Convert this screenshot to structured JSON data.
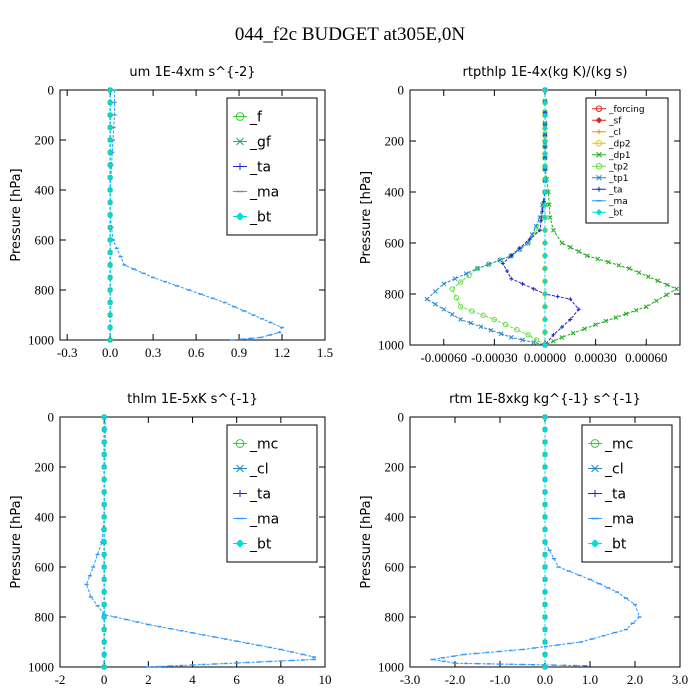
{
  "figure_title": "044_f2c  BUDGET at305E,0N",
  "chart_data": [
    {
      "type": "line",
      "title": "um  1E-4xm s^{-2}",
      "ylabel": "Pressure [hPa]",
      "xlim": [
        -0.35,
        1.5
      ],
      "ylim": [
        1000,
        0
      ],
      "xticks": [
        "-0.3",
        "0.0",
        "0.3",
        "0.6",
        "0.9",
        "1.2",
        "1.5"
      ],
      "xtick_values": [
        -0.3,
        0.0,
        0.3,
        0.6,
        0.9,
        1.2,
        1.5
      ],
      "yticks": [
        "0",
        "200",
        "400",
        "600",
        "800",
        "1000"
      ],
      "legend_position": "top-right",
      "series": [
        {
          "name": "_f",
          "color": "#33cc33",
          "marker": "circle",
          "x": [
            0,
            0,
            0,
            0,
            0,
            0,
            0,
            0,
            0,
            0,
            0
          ],
          "y": [
            0,
            100,
            200,
            300,
            400,
            500,
            600,
            700,
            800,
            900,
            1000
          ]
        },
        {
          "name": "_gf",
          "color": "#22aa77",
          "marker": "x",
          "x": [
            0,
            0,
            0,
            0,
            0,
            0,
            0,
            0,
            0,
            0,
            0
          ],
          "y": [
            0,
            100,
            200,
            300,
            400,
            500,
            600,
            700,
            800,
            900,
            1000
          ]
        },
        {
          "name": "_ta",
          "color": "#2222cc",
          "marker": "plus",
          "x": [
            0,
            0,
            0,
            0,
            0,
            0,
            0,
            0,
            0,
            0,
            0
          ],
          "y": [
            0,
            100,
            200,
            300,
            400,
            500,
            600,
            700,
            800,
            900,
            1000
          ]
        },
        {
          "name": "_ma",
          "color": "#3399ff",
          "marker": "dash",
          "x": [
            0.03,
            0.03,
            0.02,
            0.01,
            0,
            0,
            0.02,
            0.1,
            0.3,
            0.55,
            0.8,
            1.0,
            1.12,
            1.2,
            1.18,
            1.05,
            0.85
          ],
          "y": [
            0,
            100,
            200,
            300,
            400,
            500,
            600,
            700,
            750,
            800,
            850,
            900,
            930,
            950,
            970,
            990,
            1000
          ]
        },
        {
          "name": "_bt",
          "color": "#00dddd",
          "marker": "diamond",
          "x": [
            0,
            0,
            0,
            0,
            0,
            0,
            0,
            0,
            0,
            0,
            0
          ],
          "y": [
            0,
            100,
            200,
            300,
            400,
            500,
            600,
            700,
            800,
            900,
            1000
          ]
        }
      ]
    },
    {
      "type": "line",
      "title": "rtpthlp  1E-4x(kg K)/(kg s)",
      "ylabel": "Pressure [hPa]",
      "xlim": [
        -0.0008,
        0.0008
      ],
      "ylim": [
        1000,
        0
      ],
      "xticks": [
        "-0.00060",
        "-0.00030",
        "0.00000",
        "0.00030",
        "0.00060"
      ],
      "xtick_values": [
        -0.0006,
        -0.0003,
        0.0,
        0.0003,
        0.0006
      ],
      "yticks": [
        "0",
        "200",
        "400",
        "600",
        "800",
        "1000"
      ],
      "legend_position": "top-right",
      "series": [
        {
          "name": "_forcing",
          "color": "#ee2222",
          "marker": "circle",
          "x": [
            0,
            0,
            0,
            0,
            0,
            0,
            0,
            0,
            0,
            0,
            0
          ],
          "y": [
            0,
            100,
            200,
            300,
            400,
            500,
            600,
            700,
            800,
            900,
            1000
          ]
        },
        {
          "name": "_sf",
          "color": "#dd2222",
          "marker": "diamond",
          "x": [
            0,
            0,
            0,
            0,
            0,
            0,
            0,
            0,
            0,
            0,
            0
          ],
          "y": [
            0,
            100,
            200,
            300,
            400,
            500,
            600,
            700,
            800,
            900,
            1000
          ]
        },
        {
          "name": "_cl",
          "color": "#ff8800",
          "marker": "plus",
          "x": [
            0,
            0,
            0,
            0,
            0,
            0,
            0,
            0,
            0,
            0,
            0
          ],
          "y": [
            0,
            100,
            200,
            300,
            400,
            500,
            600,
            700,
            800,
            900,
            1000
          ]
        },
        {
          "name": "_dp2",
          "color": "#ddcc00",
          "marker": "circle",
          "x": [
            0,
            0,
            0,
            0,
            0,
            0,
            0,
            0,
            0,
            0,
            0
          ],
          "y": [
            0,
            100,
            200,
            300,
            400,
            500,
            600,
            700,
            800,
            900,
            1000
          ]
        },
        {
          "name": "_dp1",
          "color": "#22aa22",
          "marker": "x",
          "x": [
            0,
            0,
            2e-05,
            3e-05,
            5e-05,
            0.0001,
            0.00025,
            0.0005,
            0.00078,
            0.0006,
            0.0003,
            0.0001,
            0
          ],
          "y": [
            0,
            300,
            400,
            500,
            550,
            600,
            650,
            700,
            780,
            850,
            920,
            970,
            1000
          ]
        },
        {
          "name": "_tp2",
          "color": "#66dd44",
          "marker": "circle",
          "x": [
            0,
            0,
            -2e-05,
            -5e-05,
            -0.0001,
            -0.0002,
            -0.0004,
            -0.00055,
            -0.0005,
            -0.0003,
            -0.0001,
            0
          ],
          "y": [
            0,
            400,
            500,
            550,
            600,
            650,
            700,
            780,
            850,
            900,
            960,
            1000
          ]
        },
        {
          "name": "_tp1",
          "color": "#2288cc",
          "marker": "x",
          "x": [
            0,
            0,
            -3e-05,
            -0.0001,
            -0.0002,
            -0.0004,
            -0.0006,
            -0.0007,
            -0.0005,
            -0.0002,
            0
          ],
          "y": [
            0,
            400,
            500,
            600,
            650,
            700,
            760,
            820,
            900,
            970,
            1000
          ]
        },
        {
          "name": "_ta",
          "color": "#2222cc",
          "marker": "plus",
          "x": [
            0,
            0,
            -3e-05,
            -0.00015,
            -0.00025,
            -0.0002,
            0,
            0.00015,
            0.0002,
            0.00015,
            5e-05,
            0
          ],
          "y": [
            0,
            400,
            550,
            620,
            680,
            740,
            800,
            820,
            860,
            900,
            960,
            1000
          ]
        },
        {
          "name": "_ma",
          "color": "#3399ff",
          "marker": "dash",
          "x": [
            0,
            0,
            0,
            0,
            0,
            0,
            0,
            0,
            0,
            0,
            0
          ],
          "y": [
            0,
            100,
            200,
            300,
            400,
            500,
            600,
            700,
            800,
            900,
            1000
          ]
        },
        {
          "name": "_bt",
          "color": "#00dddd",
          "marker": "diamond",
          "x": [
            0,
            0,
            0,
            0,
            0,
            0,
            0,
            0,
            0,
            0,
            0
          ],
          "y": [
            0,
            100,
            200,
            300,
            400,
            500,
            600,
            700,
            800,
            900,
            1000
          ]
        }
      ]
    },
    {
      "type": "line",
      "title": "thlm  1E-5xK s^{-1}",
      "ylabel": "Pressure [hPa]",
      "xlim": [
        -2,
        10
      ],
      "ylim": [
        1000,
        0
      ],
      "xticks": [
        "-2",
        "0",
        "2",
        "4",
        "6",
        "8",
        "10"
      ],
      "xtick_values": [
        -2,
        0,
        2,
        4,
        6,
        8,
        10
      ],
      "yticks": [
        "0",
        "200",
        "400",
        "600",
        "800",
        "1000"
      ],
      "legend_position": "top-right",
      "series": [
        {
          "name": "_mc",
          "color": "#33cc33",
          "marker": "circle",
          "x": [
            0,
            0,
            0,
            0,
            0,
            0,
            0,
            0,
            0,
            0,
            0
          ],
          "y": [
            0,
            100,
            200,
            300,
            400,
            500,
            600,
            700,
            800,
            900,
            1000
          ]
        },
        {
          "name": "_cl",
          "color": "#2288cc",
          "marker": "x",
          "x": [
            0,
            0,
            0,
            0,
            0,
            0,
            0,
            0,
            0,
            0,
            0
          ],
          "y": [
            0,
            100,
            200,
            300,
            400,
            500,
            600,
            700,
            800,
            900,
            1000
          ]
        },
        {
          "name": "_ta",
          "color": "#2222cc",
          "marker": "plus",
          "x": [
            0,
            0,
            0,
            0,
            0,
            0,
            0,
            0,
            0,
            0,
            0
          ],
          "y": [
            0,
            100,
            200,
            300,
            400,
            500,
            600,
            700,
            800,
            900,
            1000
          ]
        },
        {
          "name": "_ma",
          "color": "#3399ff",
          "marker": "dash",
          "x": [
            0.05,
            0.05,
            0.02,
            0,
            0,
            -0.1,
            -0.5,
            -0.8,
            -0.6,
            0,
            2,
            5,
            8,
            9.5,
            9.5,
            2.0
          ],
          "y": [
            0,
            100,
            200,
            300,
            400,
            500,
            600,
            670,
            720,
            790,
            830,
            880,
            930,
            960,
            970,
            1000
          ]
        },
        {
          "name": "_bt",
          "color": "#00dddd",
          "marker": "diamond",
          "x": [
            0,
            0,
            0,
            0,
            0,
            0,
            0,
            0,
            0,
            0,
            0
          ],
          "y": [
            0,
            100,
            200,
            300,
            400,
            500,
            600,
            700,
            800,
            900,
            1000
          ]
        }
      ]
    },
    {
      "type": "line",
      "title": "rtm  1E-8xkg kg^{-1} s^{-1}",
      "ylabel": "Pressure [hPa]",
      "xlim": [
        -3.0,
        3.0
      ],
      "ylim": [
        1000,
        0
      ],
      "xticks": [
        "-3.0",
        "-2.0",
        "-1.0",
        "0.0",
        "1.0",
        "2.0",
        "3.0"
      ],
      "xtick_values": [
        -3.0,
        -2.0,
        -1.0,
        0.0,
        1.0,
        2.0,
        3.0
      ],
      "yticks": [
        "0",
        "200",
        "400",
        "600",
        "800",
        "1000"
      ],
      "legend_position": "top-right",
      "series": [
        {
          "name": "_mc",
          "color": "#33cc33",
          "marker": "circle",
          "x": [
            0,
            0,
            0,
            0,
            0,
            0,
            0,
            0,
            0,
            0,
            0
          ],
          "y": [
            0,
            100,
            200,
            300,
            400,
            500,
            600,
            700,
            800,
            900,
            1000
          ]
        },
        {
          "name": "_cl",
          "color": "#2288cc",
          "marker": "x",
          "x": [
            0,
            0,
            0,
            0,
            0,
            0,
            0,
            0,
            0,
            0,
            0
          ],
          "y": [
            0,
            100,
            200,
            300,
            400,
            500,
            600,
            700,
            800,
            900,
            1000
          ]
        },
        {
          "name": "_ta",
          "color": "#2222cc",
          "marker": "plus",
          "x": [
            0,
            0,
            0,
            0,
            0,
            0,
            0,
            0,
            0,
            0,
            0
          ],
          "y": [
            0,
            100,
            200,
            300,
            400,
            500,
            600,
            700,
            800,
            900,
            1000
          ]
        },
        {
          "name": "_ma",
          "color": "#3399ff",
          "marker": "dash",
          "x": [
            0,
            0,
            0,
            0,
            0,
            0,
            0.3,
            1.0,
            1.6,
            2.0,
            2.1,
            1.8,
            0.8,
            -0.5,
            -1.8,
            -2.5,
            -2.0,
            -0.5,
            0.9
          ],
          "y": [
            0,
            100,
            200,
            300,
            400,
            500,
            600,
            650,
            700,
            750,
            800,
            850,
            900,
            930,
            950,
            970,
            985,
            990,
            995
          ]
        },
        {
          "name": "_bt",
          "color": "#00dddd",
          "marker": "diamond",
          "x": [
            0,
            0,
            0,
            0,
            0,
            0,
            0,
            0,
            0,
            0,
            0
          ],
          "y": [
            0,
            100,
            200,
            300,
            400,
            500,
            600,
            700,
            800,
            900,
            1000
          ]
        }
      ]
    }
  ]
}
